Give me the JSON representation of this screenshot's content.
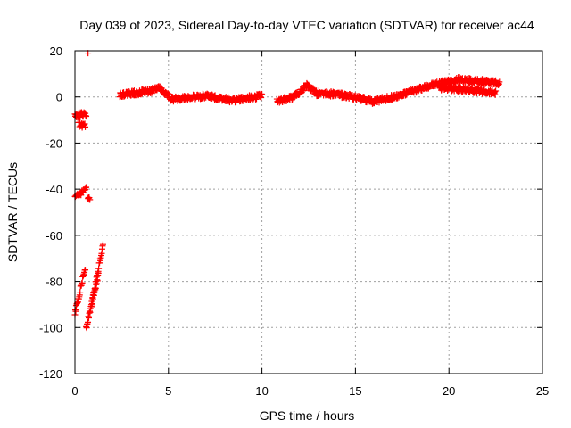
{
  "chart_data": {
    "type": "scatter",
    "title": "Day 039 of 2023, Sidereal Day-to-day VTEC variation (SDTVAR) for receiver ac44",
    "xlabel": "GPS time / hours",
    "ylabel": "SDTVAR / TECUs",
    "xlim": [
      0,
      25
    ],
    "ylim": [
      -120,
      20
    ],
    "xticks": [
      0,
      5,
      10,
      15,
      20,
      25
    ],
    "yticks": [
      -120,
      -100,
      -80,
      -60,
      -40,
      -20,
      0,
      20
    ],
    "grid": true,
    "marker": "+",
    "color": "#ff0000",
    "series": [
      {
        "name": "SDTVAR",
        "segments": [
          {
            "x": [
              0.0,
              0.6
            ],
            "y": [
              -8,
              -7.5
            ]
          },
          {
            "x": [
              0.2,
              0.55
            ],
            "y": [
              -12,
              -12.5
            ]
          },
          {
            "x": [
              0.7,
              0.7
            ],
            "y": [
              19,
              19
            ]
          },
          {
            "x": [
              0.0,
              0.6
            ],
            "y": [
              -44,
              -40
            ]
          },
          {
            "x": [
              0.7,
              0.8
            ],
            "y": [
              -44,
              -45
            ]
          },
          {
            "x": [
              0.0,
              0.55
            ],
            "y": [
              -94,
              -74
            ]
          },
          {
            "x": [
              0.6,
              1.25
            ],
            "y": [
              -100,
              -77
            ]
          },
          {
            "x": [
              0.9,
              1.5
            ],
            "y": [
              -90,
              -64
            ]
          },
          {
            "x": [
              2.4,
              4.0
            ],
            "y": [
              1,
              2.5
            ]
          },
          {
            "x": [
              4.0,
              4.5
            ],
            "y": [
              2.5,
              4
            ]
          },
          {
            "x": [
              4.5,
              5.2
            ],
            "y": [
              4,
              -1
            ]
          },
          {
            "x": [
              5.2,
              7.0
            ],
            "y": [
              -1,
              0.5
            ]
          },
          {
            "x": [
              7.0,
              8.5
            ],
            "y": [
              0.5,
              -1.5
            ]
          },
          {
            "x": [
              8.5,
              10.0
            ],
            "y": [
              -1.5,
              0.5
            ]
          },
          {
            "x": [
              10.8,
              11.7
            ],
            "y": [
              -2,
              0
            ]
          },
          {
            "x": [
              11.7,
              12.4
            ],
            "y": [
              0,
              5
            ]
          },
          {
            "x": [
              12.4,
              13.0
            ],
            "y": [
              5,
              1
            ]
          },
          {
            "x": [
              13.0,
              14.5
            ],
            "y": [
              2,
              0.5
            ]
          },
          {
            "x": [
              14.5,
              16.0
            ],
            "y": [
              0.5,
              -2
            ]
          },
          {
            "x": [
              16.0,
              17.5
            ],
            "y": [
              -2,
              1
            ]
          },
          {
            "x": [
              17.5,
              19.0
            ],
            "y": [
              1,
              5
            ]
          },
          {
            "x": [
              19.0,
              20.5
            ],
            "y": [
              5,
              7.5
            ]
          },
          {
            "x": [
              20.5,
              22.7
            ],
            "y": [
              7.5,
              6
            ]
          },
          {
            "x": [
              19.5,
              22.5
            ],
            "y": [
              4,
              2
            ]
          }
        ]
      }
    ]
  }
}
